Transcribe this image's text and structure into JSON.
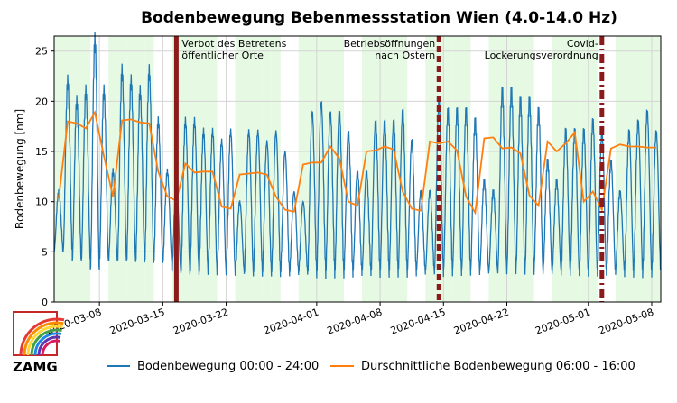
{
  "chart_data": {
    "type": "line",
    "title": "Bodenbewegung Bebenmessstation Wien (4.0-14.0 Hz)",
    "xlabel": "",
    "ylabel": "Bodenbewegung [nm]",
    "xlim": [
      "2020-03-03",
      "2020-05-09"
    ],
    "ylim": [
      0,
      26.5
    ],
    "yticks": [
      0,
      5,
      10,
      15,
      20,
      25
    ],
    "xticks": [
      "2020-03-08",
      "2020-03-15",
      "2020-03-22",
      "2020-04-01",
      "2020-04-08",
      "2020-04-15",
      "2020-04-22",
      "2020-05-01",
      "2020-05-08"
    ],
    "grid": true,
    "shaded_weekdays_color": "#e6f9e3",
    "series": [
      {
        "name": "Bodenbewegung 00:00 - 24:00",
        "color": "#1f77b4",
        "style": "daily_oscillation",
        "daily_min": [
          5,
          5,
          4,
          4,
          3,
          4,
          4,
          4,
          4,
          4,
          4,
          4,
          4,
          3,
          3,
          3,
          3,
          3,
          3,
          3,
          3,
          3,
          3,
          3,
          3,
          3,
          3,
          3,
          3,
          3,
          3,
          3,
          3,
          3,
          3,
          3,
          3,
          3,
          3,
          3,
          3,
          3,
          3,
          3,
          3,
          3,
          3,
          3,
          3,
          3,
          3,
          3,
          3,
          3,
          3,
          3,
          3,
          3,
          3,
          3,
          3,
          3,
          3,
          3,
          3,
          3,
          3
        ],
        "daily_max": [
          11,
          22,
          20,
          21,
          26,
          21,
          13,
          23,
          22,
          21,
          23,
          18,
          13,
          12,
          18,
          18,
          17,
          17,
          16,
          17,
          10,
          17,
          17,
          16,
          17,
          15,
          11,
          10,
          19,
          20,
          19,
          19,
          17,
          13,
          13,
          18,
          18,
          18,
          19,
          16,
          11,
          11,
          20,
          19,
          19,
          19,
          18,
          12,
          11,
          21,
          21,
          20,
          20,
          19,
          14,
          12,
          17,
          17,
          17,
          18,
          17,
          14,
          11,
          17,
          18,
          19,
          17
        ]
      },
      {
        "name": "Durschnittliche Bodenbewegung 06:00 - 16:00",
        "color": "#ff7f0e",
        "x": [
          "2020-03-03",
          "2020-03-04",
          "2020-03-05",
          "2020-03-06",
          "2020-03-07",
          "2020-03-08",
          "2020-03-09",
          "2020-03-10",
          "2020-03-11",
          "2020-03-12",
          "2020-03-13",
          "2020-03-14",
          "2020-03-15",
          "2020-03-16",
          "2020-03-17",
          "2020-03-18",
          "2020-03-19",
          "2020-03-20",
          "2020-03-21",
          "2020-03-22",
          "2020-03-23",
          "2020-03-24",
          "2020-03-25",
          "2020-03-26",
          "2020-03-27",
          "2020-03-28",
          "2020-03-29",
          "2020-03-30",
          "2020-03-31",
          "2020-04-01",
          "2020-04-02",
          "2020-04-03",
          "2020-04-04",
          "2020-04-05",
          "2020-04-06",
          "2020-04-07",
          "2020-04-08",
          "2020-04-09",
          "2020-04-10",
          "2020-04-11",
          "2020-04-12",
          "2020-04-13",
          "2020-04-14",
          "2020-04-15",
          "2020-04-16",
          "2020-04-17",
          "2020-04-18",
          "2020-04-19",
          "2020-04-20",
          "2020-04-21",
          "2020-04-22",
          "2020-04-23",
          "2020-04-24",
          "2020-04-25",
          "2020-04-26",
          "2020-04-27",
          "2020-04-28",
          "2020-04-29",
          "2020-04-30",
          "2020-05-01",
          "2020-05-02",
          "2020-05-03",
          "2020-05-04",
          "2020-05-05",
          "2020-05-06",
          "2020-05-07",
          "2020-05-08"
        ],
        "values": [
          10.3,
          18.0,
          17.8,
          17.3,
          18.9,
          14.5,
          10.5,
          18.1,
          18.2,
          17.9,
          17.8,
          13.0,
          10.5,
          10.1,
          13.8,
          12.9,
          13.0,
          13.0,
          9.5,
          9.3,
          12.7,
          12.8,
          12.9,
          12.7,
          10.5,
          9.2,
          9.0,
          13.7,
          13.9,
          13.9,
          15.5,
          14.3,
          10.0,
          9.6,
          15.0,
          15.1,
          15.5,
          15.2,
          11.0,
          9.3,
          9.1,
          16.0,
          15.8,
          16.0,
          15.1,
          10.5,
          8.9,
          16.3,
          16.4,
          15.3,
          15.4,
          14.8,
          10.6,
          9.6,
          16.0,
          15.0,
          15.8,
          16.9,
          10.0,
          11.0,
          9.2,
          15.3,
          15.7,
          15.5,
          15.5,
          15.4,
          15.4
        ]
      }
    ],
    "events": [
      {
        "date": "2020-03-16",
        "label": "Verbot des Betretens\nöffentlicher Orte",
        "style": "solid"
      },
      {
        "date": "2020-04-14",
        "label": "Betriebsöffnungen\nnach Ostern",
        "style": "dashed"
      },
      {
        "date": "2020-05-02",
        "label": "Covid-\nLockerungsverordnung",
        "style": "dashdot"
      }
    ],
    "event_color": "#8b1a1a"
  },
  "legend": {
    "item1": "Bodenbewegung 00:00 - 24:00",
    "item2": "Durschnittliche Bodenbewegung 06:00 - 16:00"
  },
  "logo": {
    "text": "ZAMG"
  }
}
